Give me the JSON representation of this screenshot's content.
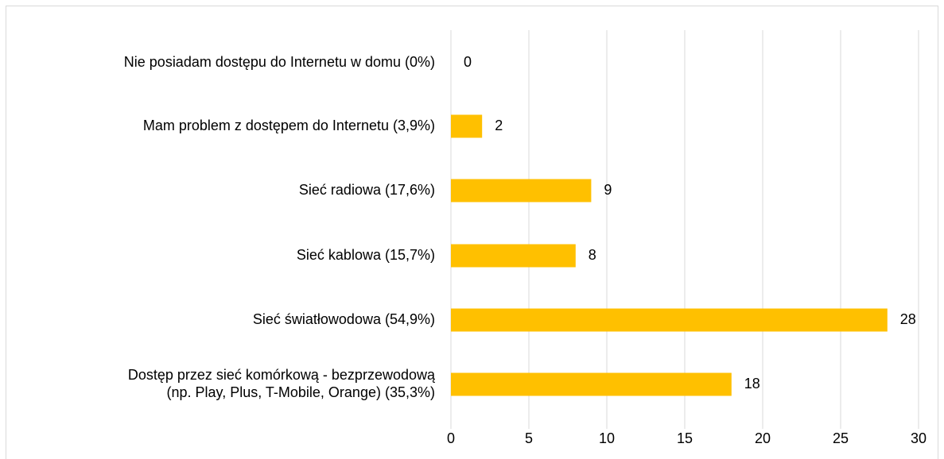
{
  "chart_data": {
    "type": "bar",
    "orientation": "horizontal",
    "categories": [
      "Nie posiadam dostępu do Internetu w domu (0%)",
      "Mam problem z dostępem do Internetu (3,9%)",
      "Sieć radiowa (17,6%)",
      "Sieć kablowa (15,7%)",
      "Sieć światłowodowa (54,9%)",
      [
        "Dostęp przez sieć komórkową  - bezprzewodową",
        "(np. Play, Plus, T-Mobile, Orange) (35,3%)"
      ]
    ],
    "values": [
      0,
      2,
      9,
      8,
      28,
      18
    ],
    "color": "#ffc000",
    "xlim": [
      0,
      30
    ],
    "xticks": [
      0,
      5,
      10,
      15,
      20,
      25,
      30
    ],
    "grid": true
  }
}
